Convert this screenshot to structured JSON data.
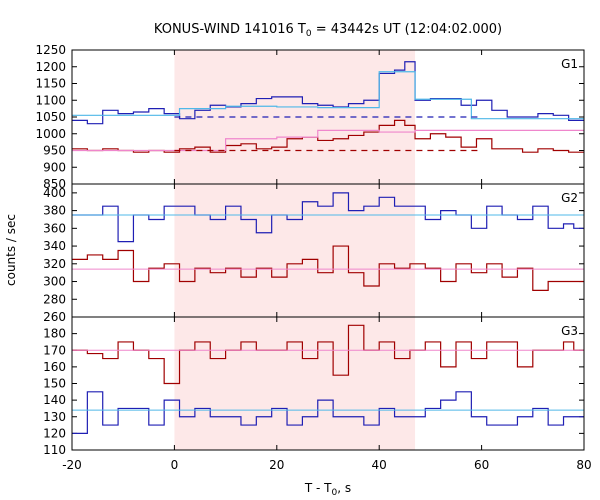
{
  "chart_data": {
    "type": "line",
    "title_main": "KONUS-WIND 141016 T",
    "title_sub": "0",
    "title_rest": " = 43442s UT (12:04:02.000)",
    "xlabel_main": "T - T",
    "xlabel_sub": "0",
    "xlabel_rest": ", s",
    "ylabel": "counts / sec",
    "xlim": [
      -20,
      80
    ],
    "xticks": [
      -20,
      0,
      20,
      40,
      60,
      80
    ],
    "shaded_interval": [
      0,
      47
    ],
    "colors": {
      "blue": "#1f1fb4",
      "red": "#a00000",
      "light_blue": "#4fb8e8",
      "pink": "#ef86cc",
      "shade": "#fde8e8"
    },
    "panels": [
      {
        "label": "G1",
        "ylim": [
          850,
          1250
        ],
        "yticks": [
          850,
          900,
          950,
          1000,
          1050,
          1100,
          1150,
          1200,
          1250
        ],
        "series": [
          {
            "color": "blue",
            "edges": [
              -20,
              -17,
              -14,
              -11,
              -8,
              -5,
              -2,
              1,
              4,
              7,
              10,
              13,
              16,
              19,
              22,
              25,
              28,
              31,
              34,
              37,
              40,
              43,
              45,
              47,
              50,
              53,
              56,
              59,
              62,
              65,
              68,
              71,
              74,
              77,
              80
            ],
            "values": [
              1040,
              1030,
              1070,
              1060,
              1065,
              1075,
              1060,
              1045,
              1070,
              1085,
              1080,
              1090,
              1105,
              1110,
              1110,
              1090,
              1085,
              1080,
              1090,
              1100,
              1180,
              1190,
              1215,
              1100,
              1105,
              1105,
              1085,
              1100,
              1070,
              1050,
              1050,
              1060,
              1055,
              1040
            ]
          },
          {
            "color": "red",
            "edges": [
              -20,
              -17,
              -14,
              -11,
              -8,
              -5,
              -2,
              1,
              4,
              7,
              10,
              13,
              16,
              19,
              22,
              25,
              28,
              31,
              34,
              37,
              40,
              43,
              45,
              47,
              50,
              53,
              56,
              59,
              62,
              65,
              68,
              71,
              74,
              77,
              80
            ],
            "values": [
              955,
              950,
              955,
              950,
              945,
              950,
              945,
              955,
              960,
              945,
              965,
              970,
              955,
              960,
              985,
              990,
              980,
              985,
              995,
              1005,
              1025,
              1040,
              1025,
              985,
              1000,
              990,
              960,
              985,
              955,
              955,
              945,
              955,
              950,
              945
            ]
          },
          {
            "color": "light_blue",
            "type": "step_fit",
            "edges": [
              -20,
              1,
              10,
              20,
              28,
              40,
              47,
              58,
              80
            ],
            "values": [
              1055,
              1075,
              1082,
              1080,
              1078,
              1185,
              1103,
              1045
            ]
          },
          {
            "color": "pink",
            "type": "step_fit",
            "edges": [
              -20,
              10,
              20,
              28,
              40,
              47,
              80
            ],
            "values": [
              950,
              985,
              990,
              1010,
              1005,
              1010
            ]
          },
          {
            "color": "blue",
            "type": "background_dashed",
            "x": [
              0,
              60
            ],
            "value": 1050
          },
          {
            "color": "red",
            "type": "background_dashed",
            "x": [
              0,
              60
            ],
            "value": 950
          }
        ]
      },
      {
        "label": "G2",
        "ylim": [
          260,
          410
        ],
        "yticks": [
          260,
          280,
          300,
          320,
          340,
          360,
          380,
          400
        ],
        "series": [
          {
            "color": "blue",
            "edges": [
              -20,
              -17,
              -14,
              -11,
              -8,
              -5,
              -2,
              1,
              4,
              7,
              10,
              13,
              16,
              19,
              22,
              25,
              28,
              31,
              34,
              37,
              40,
              43,
              46,
              49,
              52,
              55,
              58,
              61,
              64,
              67,
              70,
              73,
              76,
              78,
              80
            ],
            "values": [
              375,
              375,
              385,
              345,
              375,
              370,
              385,
              385,
              375,
              370,
              385,
              370,
              355,
              375,
              370,
              390,
              385,
              400,
              380,
              385,
              395,
              385,
              385,
              370,
              380,
              375,
              360,
              385,
              375,
              370,
              385,
              360,
              365,
              360
            ]
          },
          {
            "color": "red",
            "edges": [
              -20,
              -17,
              -14,
              -11,
              -8,
              -5,
              -2,
              1,
              4,
              7,
              10,
              13,
              16,
              19,
              22,
              25,
              28,
              31,
              34,
              37,
              40,
              43,
              46,
              49,
              52,
              55,
              58,
              61,
              64,
              67,
              70,
              73,
              76,
              78,
              80
            ],
            "values": [
              325,
              330,
              325,
              335,
              300,
              315,
              320,
              300,
              315,
              310,
              315,
              305,
              315,
              305,
              320,
              325,
              310,
              340,
              310,
              295,
              320,
              315,
              320,
              315,
              300,
              320,
              310,
              320,
              305,
              315,
              290,
              300,
              300,
              300
            ]
          },
          {
            "color": "light_blue",
            "type": "fit",
            "value": 375
          },
          {
            "color": "pink",
            "type": "fit",
            "value": 314
          }
        ]
      },
      {
        "label": "G3",
        "ylim": [
          110,
          190
        ],
        "yticks": [
          110,
          120,
          130,
          140,
          150,
          160,
          170,
          180
        ],
        "series": [
          {
            "color": "red",
            "edges": [
              -20,
              -17,
              -14,
              -11,
              -8,
              -5,
              -2,
              1,
              4,
              7,
              10,
              13,
              16,
              19,
              22,
              25,
              28,
              31,
              34,
              37,
              40,
              43,
              46,
              49,
              52,
              55,
              58,
              61,
              64,
              67,
              70,
              73,
              76,
              78,
              80
            ],
            "values": [
              170,
              168,
              165,
              175,
              170,
              165,
              150,
              170,
              175,
              165,
              170,
              175,
              170,
              170,
              175,
              165,
              175,
              155,
              185,
              170,
              175,
              165,
              170,
              175,
              160,
              175,
              165,
              175,
              175,
              160,
              170,
              170,
              175,
              170
            ]
          },
          {
            "color": "blue",
            "edges": [
              -20,
              -17,
              -14,
              -11,
              -8,
              -5,
              -2,
              1,
              4,
              7,
              10,
              13,
              16,
              19,
              22,
              25,
              28,
              31,
              34,
              37,
              40,
              43,
              46,
              49,
              52,
              55,
              58,
              61,
              64,
              67,
              70,
              73,
              76,
              78,
              80
            ],
            "values": [
              120,
              145,
              125,
              135,
              135,
              125,
              140,
              130,
              135,
              130,
              130,
              125,
              130,
              135,
              125,
              130,
              140,
              130,
              130,
              125,
              135,
              130,
              130,
              135,
              140,
              145,
              130,
              125,
              125,
              130,
              135,
              125,
              130,
              130
            ]
          },
          {
            "color": "pink",
            "type": "fit",
            "value": 170
          },
          {
            "color": "light_blue",
            "type": "fit",
            "value": 134
          }
        ]
      }
    ]
  }
}
